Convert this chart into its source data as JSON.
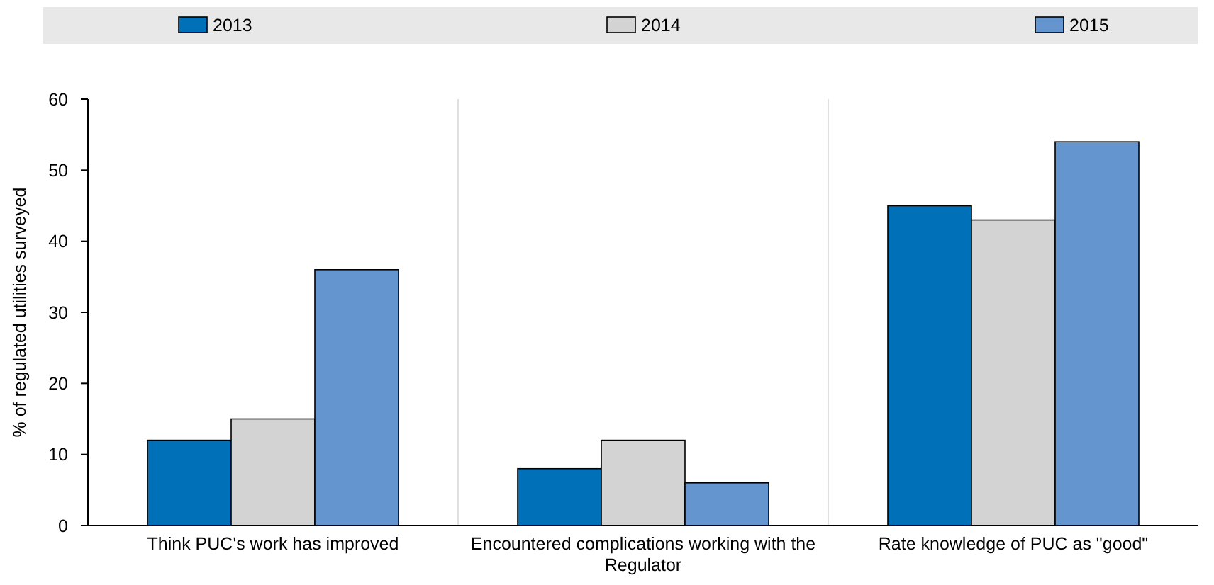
{
  "chart_data": {
    "type": "bar",
    "ylabel": "% of regulated utilities surveyed",
    "categories": [
      "Think PUC's work has improved",
      "Encountered complications working with the Regulator",
      "Rate knowledge of PUC as \"good\""
    ],
    "series": [
      {
        "name": "2013",
        "color": "#0070b8",
        "values": [
          12,
          8,
          45
        ]
      },
      {
        "name": "2014",
        "color": "#d3d3d3",
        "values": [
          15,
          12,
          43
        ]
      },
      {
        "name": "2015",
        "color": "#6495cf",
        "values": [
          36,
          6,
          54
        ]
      }
    ],
    "ylim": [
      0,
      60
    ],
    "yticks": [
      0,
      10,
      20,
      30,
      40,
      50,
      60
    ],
    "grid": false,
    "legend": "top"
  }
}
